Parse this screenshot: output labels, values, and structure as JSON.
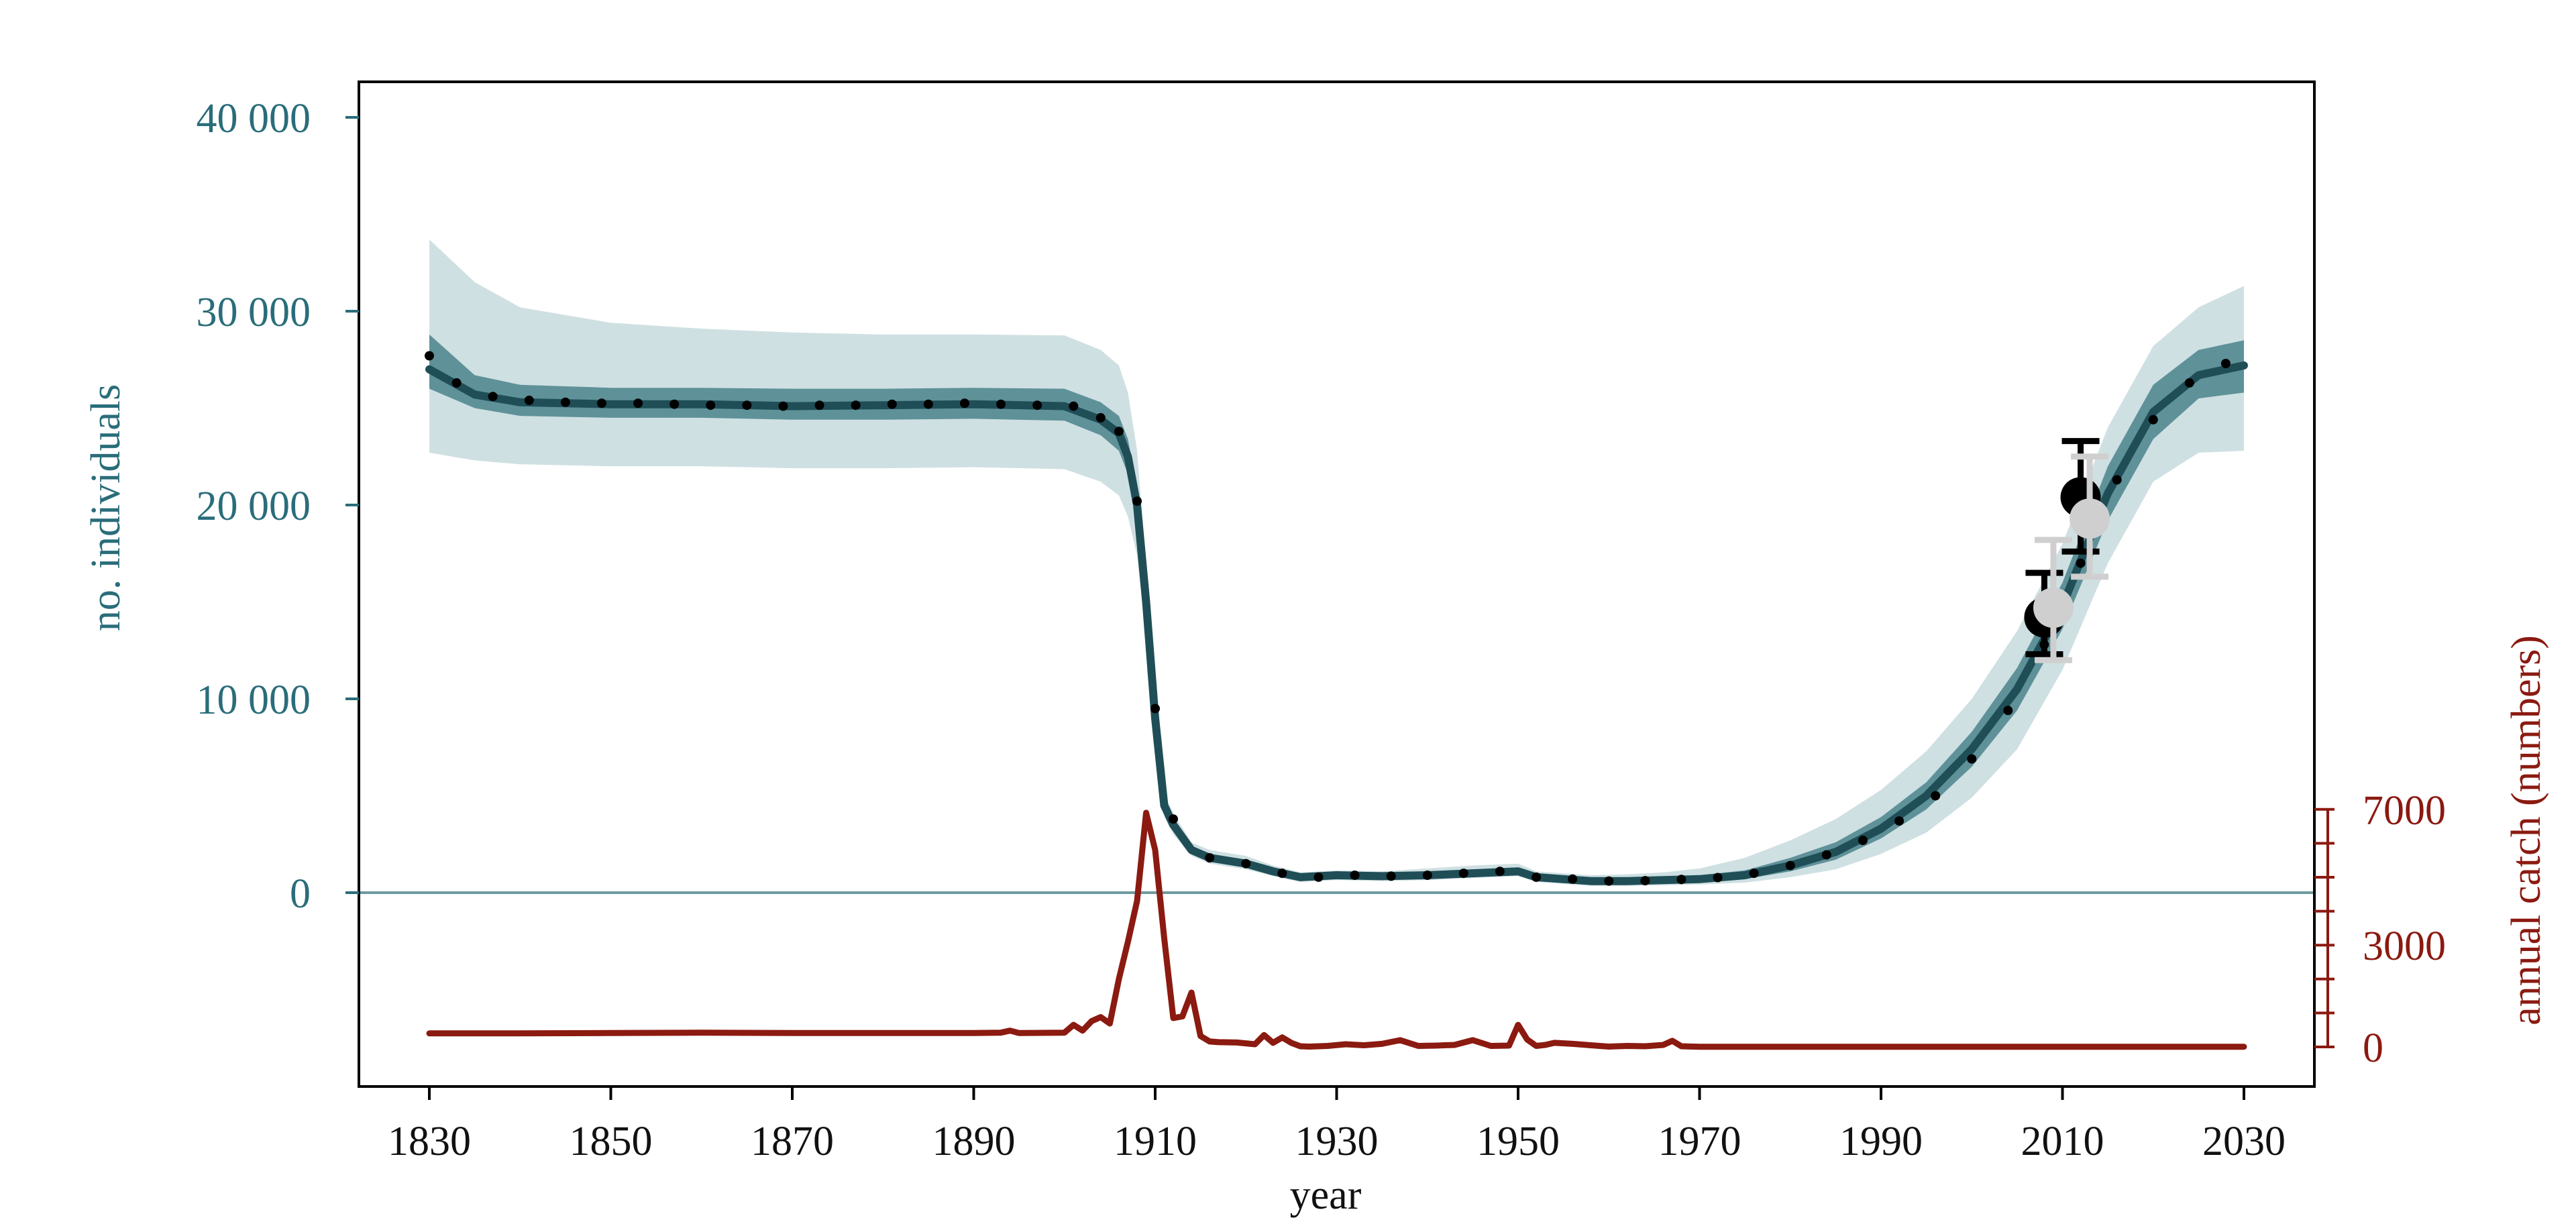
{
  "chart_data": {
    "type": "line",
    "xlabel": "year",
    "ylabel_left": "no. individuals",
    "ylabel_right": "annual catch (numbers)",
    "x_range": [
      1830,
      2030
    ],
    "x_ticks": [
      1830,
      1850,
      1870,
      1890,
      1910,
      1930,
      1950,
      1970,
      1990,
      2010,
      2030
    ],
    "x_tick_labels": [
      "1830",
      "1850",
      "1870",
      "1890",
      "1910",
      "1930",
      "1950",
      "1970",
      "1990",
      "2010",
      "2030"
    ],
    "y_left_ticks": [
      0,
      10000,
      20000,
      30000,
      40000
    ],
    "y_left_tick_labels": [
      "0",
      "10 000",
      "20 000",
      "30 000",
      "40 000"
    ],
    "y_right_ticks": [
      0,
      1000,
      2000,
      3000,
      4000,
      5000,
      6000,
      7000
    ],
    "y_right_tick_labels": [
      "0",
      "",
      "",
      "3000",
      "",
      "",
      "",
      "7000"
    ],
    "colors": {
      "population": "#1f4e57",
      "band_inner": "#5f9199",
      "band_outer": "#cfe0e2",
      "catch": "#8b1a10",
      "catch_band": "#d9a39c",
      "zero_line": "#6f9aa0",
      "left_axis_text": "#2a6d7a",
      "right_axis_text": "#8b1a10",
      "obs_black": "#000000",
      "obs_grey": "#cfcfcf"
    },
    "population": {
      "x": [
        1830,
        1835,
        1840,
        1850,
        1860,
        1870,
        1880,
        1890,
        1900,
        1904,
        1906,
        1907,
        1908,
        1909,
        1910,
        1911,
        1912,
        1914,
        1916,
        1920,
        1923,
        1926,
        1930,
        1935,
        1940,
        1945,
        1950,
        1952,
        1955,
        1958,
        1962,
        1966,
        1970,
        1975,
        1980,
        1985,
        1990,
        1995,
        2000,
        2005,
        2010,
        2015,
        2020,
        2025,
        2030
      ],
      "median": [
        27000,
        25700,
        25300,
        25200,
        25200,
        25100,
        25150,
        25200,
        25100,
        24400,
        23700,
        22500,
        20000,
        15000,
        9000,
        4500,
        3500,
        2200,
        1800,
        1500,
        1100,
        800,
        900,
        850,
        900,
        1000,
        1100,
        800,
        700,
        600,
        600,
        650,
        700,
        900,
        1400,
        2100,
        3300,
        5000,
        7400,
        10500,
        14800,
        20600,
        24800,
        26700,
        27200
      ],
      "inner_lo": [
        26000,
        25000,
        24600,
        24500,
        24500,
        24400,
        24400,
        24450,
        24350,
        23600,
        22800,
        21600,
        19200,
        14400,
        8700,
        4200,
        3200,
        2000,
        1600,
        1300,
        950,
        650,
        750,
        700,
        750,
        850,
        950,
        650,
        550,
        450,
        450,
        500,
        550,
        700,
        1100,
        1700,
        2800,
        4300,
        6500,
        9400,
        13600,
        19200,
        23400,
        25500,
        25800
      ],
      "inner_hi": [
        28800,
        26700,
        26200,
        26050,
        26050,
        26000,
        26000,
        26050,
        26000,
        25300,
        24600,
        23400,
        20900,
        15700,
        9400,
        4800,
        3800,
        2400,
        2000,
        1700,
        1250,
        950,
        1050,
        1000,
        1100,
        1200,
        1300,
        950,
        850,
        750,
        750,
        800,
        900,
        1150,
        1800,
        2600,
        3900,
        5700,
        8300,
        11600,
        16000,
        22000,
        26200,
        28000,
        28500
      ],
      "outer_lo": [
        22700,
        22300,
        22100,
        22000,
        22000,
        21900,
        21900,
        21950,
        21850,
        21200,
        20500,
        19400,
        17400,
        13200,
        8000,
        3900,
        3000,
        1900,
        1500,
        1200,
        850,
        550,
        650,
        600,
        650,
        750,
        850,
        550,
        450,
        350,
        350,
        380,
        420,
        520,
        800,
        1200,
        2000,
        3100,
        4900,
        7400,
        11500,
        17000,
        21200,
        22700,
        22800
      ],
      "outer_hi": [
        33700,
        31500,
        30200,
        29400,
        29100,
        28900,
        28800,
        28800,
        28750,
        28000,
        27200,
        25800,
        22800,
        16900,
        10000,
        5100,
        4100,
        2600,
        2200,
        1900,
        1400,
        1050,
        1150,
        1100,
        1250,
        1400,
        1500,
        1100,
        1000,
        900,
        950,
        1050,
        1250,
        1800,
        2700,
        3800,
        5300,
        7300,
        10000,
        13500,
        18000,
        24000,
        28200,
        30200,
        31300
      ],
      "dotted_x": [
        1830,
        1833,
        1837,
        1841,
        1845,
        1849,
        1853,
        1857,
        1861,
        1865,
        1869,
        1873,
        1877,
        1881,
        1885,
        1889,
        1893,
        1897,
        1901,
        1904,
        1906,
        1908,
        1910,
        1912,
        1916,
        1920,
        1924,
        1928,
        1932,
        1936,
        1940,
        1944,
        1948,
        1952,
        1956,
        1960,
        1964,
        1968,
        1972,
        1976,
        1980,
        1984,
        1988,
        1992,
        1996,
        2000,
        2004,
        2008,
        2012,
        2016,
        2020,
        2024,
        2028
      ],
      "dotted_y": [
        27700,
        26300,
        25600,
        25400,
        25300,
        25250,
        25250,
        25200,
        25150,
        25150,
        25100,
        25150,
        25150,
        25200,
        25200,
        25250,
        25200,
        25150,
        25100,
        24500,
        23800,
        20200,
        9500,
        3800,
        1800,
        1500,
        1000,
        800,
        900,
        850,
        900,
        1000,
        1100,
        800,
        700,
        600,
        620,
        680,
        780,
        1000,
        1400,
        1950,
        2700,
        3700,
        5000,
        6900,
        9400,
        12800,
        17000,
        21300,
        24400,
        26300,
        27300
      ]
    },
    "catch": {
      "x": [
        1830,
        1840,
        1850,
        1860,
        1870,
        1880,
        1890,
        1893,
        1894,
        1895,
        1900,
        1901,
        1902,
        1903,
        1904,
        1905,
        1906,
        1907,
        1908,
        1909,
        1910,
        1911,
        1912,
        1913,
        1914,
        1915,
        1916,
        1917,
        1919,
        1921,
        1922,
        1923,
        1924,
        1925,
        1926,
        1927,
        1929,
        1931,
        1933,
        1935,
        1937,
        1939,
        1941,
        1943,
        1945,
        1947,
        1949,
        1950,
        1951,
        1952,
        1953,
        1954,
        1956,
        1958,
        1960,
        1962,
        1964,
        1966,
        1967,
        1968,
        1970,
        1990,
        2010,
        2030
      ],
      "values": [
        400,
        400,
        410,
        420,
        410,
        410,
        410,
        420,
        480,
        410,
        420,
        650,
        480,
        760,
        880,
        690,
        2000,
        3100,
        4300,
        6900,
        5800,
        3200,
        850,
        900,
        1600,
        320,
        160,
        140,
        130,
        80,
        350,
        120,
        280,
        120,
        20,
        10,
        30,
        80,
        50,
        90,
        200,
        30,
        40,
        60,
        200,
        30,
        40,
        650,
        220,
        30,
        60,
        120,
        90,
        50,
        10,
        30,
        20,
        60,
        180,
        20,
        5,
        5,
        5,
        5
      ],
      "band_lo": [
        330,
        330,
        340,
        350,
        340,
        340,
        340,
        350,
        410,
        340
      ],
      "band_hi": [
        470,
        470,
        480,
        500,
        480,
        480,
        480,
        490,
        550,
        480
      ]
    },
    "observations": [
      {
        "series": "black",
        "year": 2008,
        "value": 14200,
        "lo": 12300,
        "hi": 16500
      },
      {
        "series": "black",
        "year": 2012,
        "value": 20400,
        "lo": 17600,
        "hi": 23300
      },
      {
        "series": "grey",
        "year": 2009,
        "value": 14700,
        "lo": 12000,
        "hi": 18200
      },
      {
        "series": "grey",
        "year": 2013,
        "value": 19300,
        "lo": 16300,
        "hi": 22500
      }
    ]
  }
}
